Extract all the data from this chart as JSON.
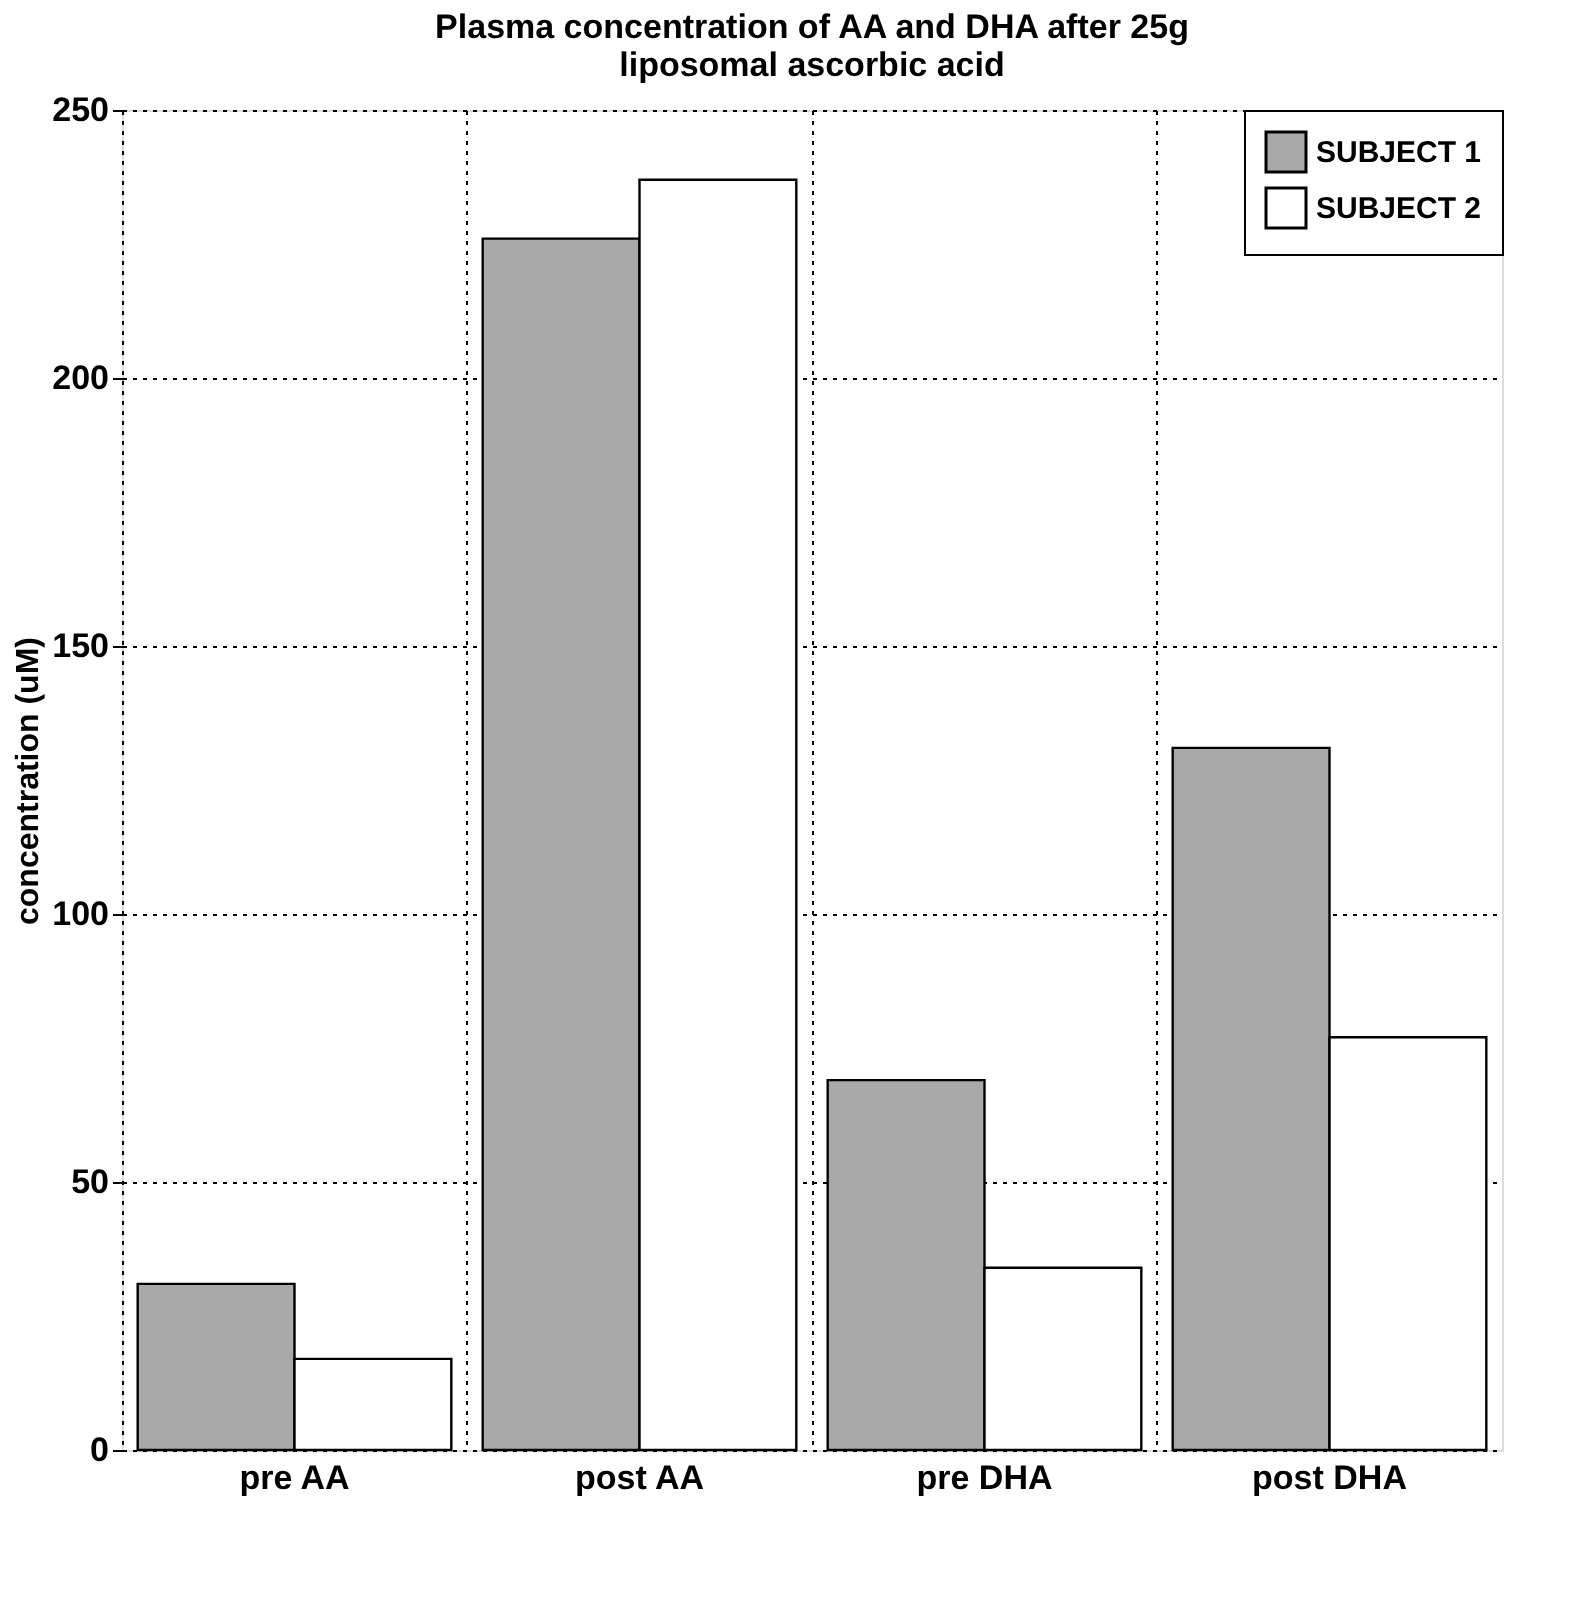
{
  "chart_data": {
    "type": "bar",
    "title": "Plasma concentration of AA and DHA after 25g\nliposomal ascorbic acid",
    "ylabel": "concentration (uM)",
    "categories": [
      "pre AA",
      "post AA",
      "pre DHA",
      "post DHA"
    ],
    "series": [
      {
        "name": "SUBJECT 1",
        "color": "#a9a9a9",
        "values": [
          31,
          226,
          69,
          131
        ]
      },
      {
        "name": "SUBJECT 2",
        "color": "#ffffff",
        "values": [
          17,
          237,
          34,
          77
        ]
      }
    ],
    "ylim": [
      0,
      250
    ],
    "yticks": [
      0,
      50,
      100,
      150,
      200,
      250
    ],
    "grid": true,
    "legend": "top right"
  }
}
